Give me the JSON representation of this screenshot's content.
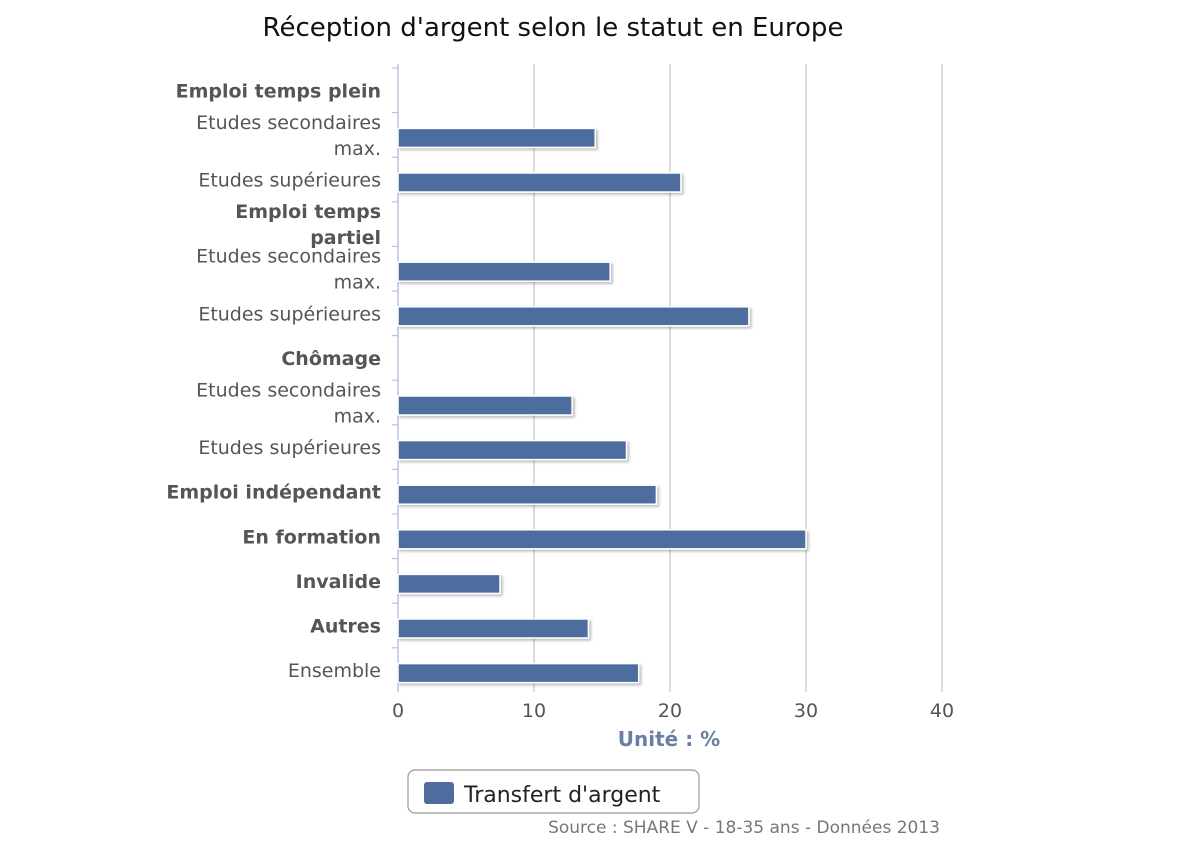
{
  "chart_data": {
    "type": "bar",
    "orientation": "horizontal",
    "title": "Réception d'argent selon le statut en Europe",
    "xlabel": "Unité : %",
    "ylabel": "",
    "xlim": [
      0,
      40
    ],
    "xticks": [
      "0",
      "10",
      "20",
      "30",
      "40"
    ],
    "grid": true,
    "legend_position": "bottom",
    "categories": [
      {
        "label": [
          "Emploi temps plein"
        ],
        "bold": true,
        "value": null
      },
      {
        "label": [
          "Etudes secondaires",
          "max."
        ],
        "bold": false,
        "value": 14.5
      },
      {
        "label": [
          "Etudes supérieures"
        ],
        "bold": false,
        "value": 20.8
      },
      {
        "label": [
          "Emploi temps",
          "partiel"
        ],
        "bold": true,
        "value": null
      },
      {
        "label": [
          "Etudes secondaires",
          "max."
        ],
        "bold": false,
        "value": 15.6
      },
      {
        "label": [
          "Etudes supérieures"
        ],
        "bold": false,
        "value": 25.8
      },
      {
        "label": [
          "Chômage"
        ],
        "bold": true,
        "value": null
      },
      {
        "label": [
          "Etudes secondaires",
          "max."
        ],
        "bold": false,
        "value": 12.8
      },
      {
        "label": [
          "Etudes supérieures"
        ],
        "bold": false,
        "value": 16.8
      },
      {
        "label": [
          "Emploi indépendant"
        ],
        "bold": true,
        "value": 19.0
      },
      {
        "label": [
          "En formation"
        ],
        "bold": true,
        "value": 30.0
      },
      {
        "label": [
          "Invalide"
        ],
        "bold": true,
        "value": 7.5
      },
      {
        "label": [
          "Autres"
        ],
        "bold": true,
        "value": 14.0
      },
      {
        "label": [
          "Ensemble"
        ],
        "bold": false,
        "value": 17.7
      }
    ],
    "series": [
      {
        "name": "Transfert d'argent",
        "color": "#4e6d9e"
      }
    ],
    "source": "Source : SHARE V - 18-35 ans - Données 2013"
  }
}
